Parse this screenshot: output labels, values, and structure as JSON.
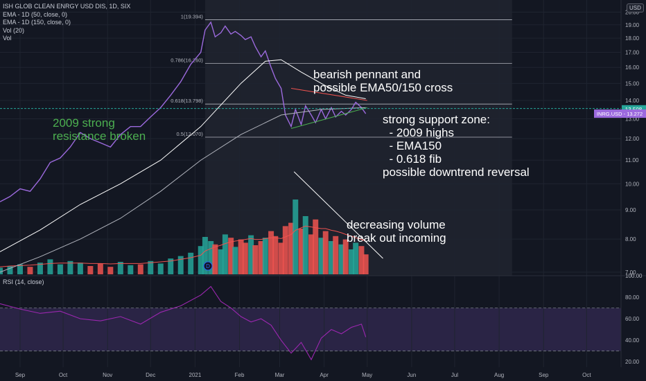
{
  "legend": {
    "symbol": "ISH GLOB CLEAN ENRGY USD DIS, 1D, SIX",
    "ema50": "EMA - 1D (50, close, 0)",
    "ema150": "EMA - 1D (150, close, 0)",
    "vol": "Vol (20)",
    "vol_sub": "Vol"
  },
  "rsi_label": "RSI (14, close)",
  "currency_badge": "USD",
  "price_labels": {
    "last_price": "13.508",
    "last_color": "#26a69a",
    "comparison": "INRG.USD - 13.272",
    "comparison_color": "#9c6ade"
  },
  "annotations": {
    "pennant": "bearish pennant and\npossible EMA50/150 cross",
    "support": "strong support zone:\n  - 2009 highs\n  - EMA150\n  - 0.618 fib\npossible downtrend reversal",
    "resistance": "2009 strong\nresistance broken",
    "volume": "decreasing volume\nbreak out incoming",
    "dividend_marker": "D"
  },
  "chart_data": [
    {
      "type": "line",
      "pane": "price",
      "title": "",
      "scale": "log",
      "ylim": [
        6.9,
        21.0
      ],
      "y_ticks": [
        7.0,
        8.0,
        9.0,
        10.0,
        11.0,
        12.0,
        13.0,
        14.0,
        15.0,
        16.0,
        17.0,
        18.0,
        19.0,
        20.0
      ],
      "x_ticks": [
        "Sep",
        "Oct",
        "Nov",
        "Dec",
        "2021",
        "Feb",
        "Mar",
        "Apr",
        "May",
        "Jun",
        "Jul",
        "Aug",
        "Sep",
        "Oct"
      ],
      "x_tick_dates": [
        "2020-09-01",
        "2020-10-01",
        "2020-11-01",
        "2020-12-01",
        "2021-01-01",
        "2021-02-01",
        "2021-03-01",
        "2021-04-01",
        "2021-05-01",
        "2021-06-01",
        "2021-07-01",
        "2021-08-01",
        "2021-09-01",
        "2021-10-01"
      ],
      "xlim": [
        "2020-08-18",
        "2021-10-25"
      ],
      "series": [
        {
          "kind": "price",
          "color": "#9c6ade",
          "x": [
            "2020-08-18",
            "2020-08-25",
            "2020-09-01",
            "2020-09-08",
            "2020-09-15",
            "2020-09-22",
            "2020-09-29",
            "2020-10-06",
            "2020-10-13",
            "2020-10-20",
            "2020-10-27",
            "2020-11-03",
            "2020-11-10",
            "2020-11-17",
            "2020-11-24",
            "2020-12-01",
            "2020-12-08",
            "2020-12-15",
            "2020-12-22",
            "2020-12-29",
            "2021-01-05",
            "2021-01-08",
            "2021-01-12",
            "2021-01-15",
            "2021-01-19",
            "2021-01-22",
            "2021-01-26",
            "2021-01-29",
            "2021-02-02",
            "2021-02-05",
            "2021-02-09",
            "2021-02-12",
            "2021-02-16",
            "2021-02-19",
            "2021-02-23",
            "2021-02-26",
            "2021-03-02",
            "2021-03-05",
            "2021-03-09",
            "2021-03-12",
            "2021-03-16",
            "2021-03-19",
            "2021-03-23",
            "2021-03-26",
            "2021-03-30",
            "2021-04-02",
            "2021-04-06",
            "2021-04-09",
            "2021-04-13",
            "2021-04-16",
            "2021-04-20",
            "2021-04-23",
            "2021-04-27",
            "2021-04-30"
          ],
          "y": [
            9.3,
            9.5,
            9.8,
            9.7,
            10.2,
            10.9,
            11.1,
            11.6,
            12.3,
            12.0,
            11.8,
            11.6,
            12.2,
            12.6,
            12.6,
            13.1,
            13.6,
            14.3,
            15.1,
            16.2,
            17.0,
            18.6,
            19.2,
            18.1,
            18.4,
            18.9,
            18.3,
            18.5,
            18.2,
            17.9,
            18.1,
            17.4,
            16.7,
            17.1,
            16.0,
            15.3,
            14.7,
            13.2,
            12.6,
            13.5,
            12.7,
            13.7,
            13.2,
            12.8,
            13.5,
            13.0,
            13.6,
            13.1,
            13.4,
            13.2,
            13.5,
            13.9,
            13.6,
            13.272
          ]
        },
        {
          "kind": "ema50",
          "color": "#ffffff",
          "x": [
            "2020-08-18",
            "2020-09-15",
            "2020-10-13",
            "2020-11-10",
            "2020-12-08",
            "2021-01-05",
            "2021-02-02",
            "2021-02-19",
            "2021-03-02",
            "2021-03-16",
            "2021-04-01",
            "2021-04-16",
            "2021-04-30"
          ],
          "y": [
            7.6,
            8.3,
            9.2,
            10.0,
            11.0,
            12.6,
            15.0,
            16.4,
            16.5,
            15.7,
            14.9,
            14.3,
            14.1
          ]
        },
        {
          "kind": "ema150",
          "color": "#b2b5be",
          "x": [
            "2020-08-18",
            "2020-09-15",
            "2020-10-13",
            "2020-11-10",
            "2020-12-08",
            "2021-01-05",
            "2021-02-02",
            "2021-03-02",
            "2021-03-30",
            "2021-04-30"
          ],
          "y": [
            7.0,
            7.45,
            8.0,
            8.7,
            9.7,
            11.0,
            12.2,
            13.2,
            13.5,
            13.6
          ]
        }
      ],
      "fibonacci": [
        {
          "label": "1(19.394)",
          "level": 19.394
        },
        {
          "label": "0.786(16.260)",
          "level": 16.26
        },
        {
          "label": "0.618(13.798)",
          "level": 13.798
        },
        {
          "label": "0.5(12.070)",
          "level": 12.07
        }
      ],
      "fib_range": [
        "2021-01-08",
        "2021-08-10"
      ],
      "trendlines": [
        {
          "name": "pennant-upper",
          "color": "#ef5350",
          "from": [
            "2021-03-09",
            14.7
          ],
          "to": [
            "2021-05-01",
            14.0
          ]
        },
        {
          "name": "pennant-lower",
          "color": "#4caf50",
          "from": [
            "2021-03-09",
            12.5
          ],
          "to": [
            "2021-05-01",
            13.6
          ]
        },
        {
          "name": "support-2009",
          "color": "#26a69a",
          "from": [
            "2020-08-18",
            13.55
          ],
          "to": [
            "2021-10-25",
            13.55
          ]
        },
        {
          "name": "volume-trend",
          "color": "#ffffff",
          "from": [
            "2021-03-11",
            10.5
          ],
          "to": [
            "2021-05-12",
            7.4
          ]
        }
      ]
    },
    {
      "type": "bar",
      "pane": "volume",
      "title": "",
      "x": [
        "2020-08-18",
        "2020-08-25",
        "2020-09-01",
        "2020-09-08",
        "2020-09-15",
        "2020-09-22",
        "2020-09-29",
        "2020-10-06",
        "2020-10-13",
        "2020-10-20",
        "2020-10-27",
        "2020-11-03",
        "2020-11-10",
        "2020-11-17",
        "2020-11-24",
        "2020-12-01",
        "2020-12-08",
        "2020-12-15",
        "2020-12-22",
        "2020-12-29",
        "2021-01-05",
        "2021-01-08",
        "2021-01-12",
        "2021-01-15",
        "2021-01-19",
        "2021-01-22",
        "2021-01-26",
        "2021-01-29",
        "2021-02-02",
        "2021-02-05",
        "2021-02-09",
        "2021-02-12",
        "2021-02-16",
        "2021-02-19",
        "2021-02-23",
        "2021-02-26",
        "2021-03-02",
        "2021-03-05",
        "2021-03-09",
        "2021-03-12",
        "2021-03-16",
        "2021-03-19",
        "2021-03-23",
        "2021-03-26",
        "2021-03-30",
        "2021-04-02",
        "2021-04-06",
        "2021-04-09",
        "2021-04-13",
        "2021-04-16",
        "2021-04-20",
        "2021-04-23",
        "2021-04-27",
        "2021-04-30"
      ],
      "values": [
        8,
        10,
        12,
        9,
        14,
        18,
        12,
        16,
        14,
        10,
        13,
        9,
        15,
        11,
        12,
        16,
        13,
        19,
        22,
        26,
        34,
        45,
        40,
        36,
        30,
        48,
        44,
        33,
        42,
        38,
        47,
        35,
        40,
        44,
        52,
        46,
        38,
        58,
        62,
        90,
        55,
        70,
        48,
        66,
        44,
        52,
        40,
        46,
        36,
        42,
        30,
        38,
        34,
        24
      ],
      "up": [
        true,
        true,
        true,
        false,
        true,
        true,
        true,
        true,
        true,
        false,
        false,
        false,
        true,
        true,
        false,
        true,
        true,
        true,
        true,
        true,
        true,
        true,
        true,
        false,
        true,
        true,
        false,
        true,
        false,
        false,
        true,
        false,
        false,
        true,
        false,
        false,
        false,
        false,
        false,
        true,
        false,
        true,
        false,
        false,
        true,
        false,
        true,
        false,
        true,
        false,
        true,
        true,
        false,
        false
      ],
      "ma": [
        9,
        10,
        10.5,
        11,
        12,
        13,
        13.5,
        13.5,
        13.5,
        13,
        13,
        12.5,
        13,
        13,
        13,
        14,
        15,
        16,
        18,
        20,
        23,
        28,
        31,
        33,
        35,
        37,
        39,
        40,
        41,
        42,
        43,
        42,
        42,
        43,
        44,
        44,
        43,
        45,
        48,
        53,
        56,
        58,
        57,
        56,
        55,
        55,
        53,
        52,
        50,
        48,
        46,
        44,
        42,
        40
      ],
      "up_color": "#26a69a",
      "down_color": "#ef5350",
      "ma_color": "#ef5350"
    },
    {
      "type": "line",
      "pane": "rsi",
      "title": "",
      "ylim": [
        15,
        100
      ],
      "y_ticks": [
        20,
        40,
        60,
        80,
        100
      ],
      "bands": [
        30,
        70
      ],
      "color": "#9c27b0",
      "x": [
        "2020-08-18",
        "2020-09-01",
        "2020-09-15",
        "2020-09-29",
        "2020-10-13",
        "2020-10-27",
        "2020-11-10",
        "2020-11-24",
        "2020-12-08",
        "2020-12-22",
        "2021-01-05",
        "2021-01-12",
        "2021-01-19",
        "2021-01-26",
        "2021-02-02",
        "2021-02-09",
        "2021-02-16",
        "2021-02-23",
        "2021-03-02",
        "2021-03-09",
        "2021-03-16",
        "2021-03-23",
        "2021-03-30",
        "2021-04-06",
        "2021-04-13",
        "2021-04-20",
        "2021-04-27",
        "2021-04-30"
      ],
      "y": [
        74,
        69,
        65,
        67,
        60,
        58,
        62,
        55,
        66,
        72,
        82,
        90,
        76,
        70,
        62,
        57,
        60,
        54,
        40,
        28,
        38,
        22,
        42,
        50,
        46,
        52,
        55,
        43
      ]
    }
  ]
}
